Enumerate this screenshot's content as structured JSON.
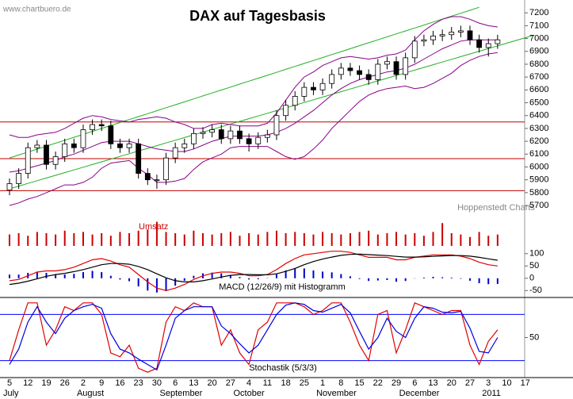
{
  "watermark": "www.chartbuero.de",
  "credit": "Hoppenstedt Charts",
  "chart_data": [
    {
      "type": "candlestick",
      "title": "DAX auf Tagesbasis",
      "open": [
        5820,
        5870,
        5950,
        6150,
        6170,
        6020,
        6080,
        6180,
        6150,
        6290,
        6330,
        6320,
        6180,
        6150,
        6180,
        5950,
        5900,
        5900,
        6070,
        6150,
        6180,
        6260,
        6270,
        6290,
        6220,
        6280,
        6220,
        6180,
        6230,
        6250,
        6400,
        6480,
        6550,
        6620,
        6600,
        6650,
        6720,
        6770,
        6750,
        6720,
        6680,
        6800,
        6820,
        6720,
        6850,
        6980,
        6990,
        7020,
        7030,
        7050,
        7060,
        6990,
        6930,
        6960,
        null,
        null,
        null,
        null
      ],
      "high": [
        5910,
        5990,
        6190,
        6210,
        6210,
        6120,
        6220,
        6220,
        6330,
        6370,
        6370,
        6360,
        6220,
        6220,
        6220,
        5990,
        5940,
        6110,
        6190,
        6220,
        6300,
        6310,
        6330,
        6330,
        6320,
        6320,
        6260,
        6270,
        6290,
        6440,
        6520,
        6590,
        6660,
        6660,
        6690,
        6760,
        6810,
        6810,
        6790,
        6760,
        6840,
        6860,
        6860,
        6890,
        7020,
        7030,
        7060,
        7070,
        7090,
        7100,
        7100,
        7030,
        7000,
        7030,
        null,
        null,
        null,
        null
      ],
      "low": [
        5780,
        5830,
        5910,
        6110,
        5980,
        5980,
        6040,
        6110,
        6110,
        6250,
        6280,
        6140,
        6110,
        6110,
        5910,
        5860,
        5830,
        5860,
        6030,
        6110,
        6140,
        6220,
        6230,
        6180,
        6180,
        6180,
        6120,
        6140,
        6190,
        6210,
        6360,
        6440,
        6510,
        6560,
        6560,
        6610,
        6680,
        6710,
        6680,
        6640,
        6640,
        6760,
        6680,
        6680,
        6810,
        6940,
        6950,
        6980,
        6990,
        7010,
        6950,
        6890,
        6860,
        6920,
        null,
        null,
        null,
        null
      ],
      "close": [
        5870,
        5950,
        6150,
        6170,
        6020,
        6080,
        6180,
        6150,
        6290,
        6330,
        6320,
        6180,
        6150,
        6180,
        5950,
        5900,
        5900,
        6070,
        6150,
        6180,
        6260,
        6270,
        6290,
        6220,
        6280,
        6220,
        6180,
        6230,
        6250,
        6400,
        6480,
        6550,
        6620,
        6600,
        6650,
        6720,
        6770,
        6750,
        6720,
        6680,
        6800,
        6820,
        6720,
        6850,
        6980,
        6990,
        7020,
        7030,
        7050,
        7060,
        6990,
        6930,
        6960,
        6990,
        null,
        null,
        null,
        null
      ],
      "candle_colors": {
        "up": "#ffffff",
        "down": "#000000",
        "outline": "#000000"
      },
      "bands": {
        "color": "#8a008a",
        "upper": [
          6250,
          6230,
          6230,
          6250,
          6260,
          6270,
          6300,
          6340,
          6380,
          6400,
          6390,
          6370,
          6360,
          6350,
          6370,
          6380,
          6390,
          6380,
          6350,
          6330,
          6300,
          6300,
          6330,
          6340,
          6330,
          6320,
          6320,
          6320,
          6340,
          6420,
          6520,
          6620,
          6700,
          6740,
          6790,
          6820,
          6850,
          6860,
          6850,
          6840,
          6850,
          6870,
          6880,
          6910,
          6990,
          7060,
          7110,
          7150,
          7170,
          7170,
          7150,
          7120,
          7100,
          7090,
          null,
          null,
          null,
          null
        ],
        "middle": [
          5960,
          5970,
          5990,
          6010,
          6030,
          6050,
          6080,
          6100,
          6130,
          6160,
          6190,
          6200,
          6200,
          6200,
          6180,
          6160,
          6140,
          6130,
          6120,
          6120,
          6140,
          6170,
          6200,
          6220,
          6240,
          6240,
          6240,
          6240,
          6250,
          6270,
          6300,
          6340,
          6390,
          6440,
          6500,
          6560,
          6610,
          6650,
          6680,
          6700,
          6720,
          6740,
          6750,
          6770,
          6800,
          6840,
          6880,
          6920,
          6950,
          6980,
          6990,
          6990,
          6990,
          6990,
          null,
          null,
          null,
          null
        ],
        "lower": [
          5700,
          5720,
          5750,
          5770,
          5800,
          5830,
          5860,
          5860,
          5880,
          5920,
          5990,
          6030,
          6040,
          6050,
          5990,
          5940,
          5880,
          5880,
          5890,
          5910,
          5980,
          6040,
          6070,
          6100,
          6150,
          6160,
          6160,
          6160,
          6160,
          6120,
          6080,
          6060,
          6080,
          6140,
          6210,
          6300,
          6370,
          6440,
          6510,
          6560,
          6590,
          6610,
          6620,
          6630,
          6610,
          6620,
          6650,
          6690,
          6730,
          6790,
          6830,
          6860,
          6880,
          6890,
          null,
          null,
          null,
          null
        ]
      },
      "trendlines": [
        {
          "color": "#22b022",
          "values": [
            6070,
            6093,
            6116,
            6139,
            6162,
            6185,
            6208,
            6231,
            6254,
            6277,
            6300,
            6323,
            6346,
            6369,
            6392,
            6415,
            6438,
            6461,
            6484,
            6507,
            6530,
            6553,
            6576,
            6599,
            6622,
            6645,
            6668,
            6691,
            6714,
            6737,
            6760,
            6783,
            6806,
            6829,
            6852,
            6875,
            6898,
            6921,
            6944,
            6967,
            6990,
            7013,
            7036,
            7059,
            7082,
            7105,
            7128,
            7151,
            7174,
            7197,
            7220,
            7243,
            null,
            null,
            null,
            null,
            null,
            null
          ]
        },
        {
          "color": "#22b022",
          "values": [
            5830,
            5851,
            5872,
            5893,
            5914,
            5935,
            5956,
            5977,
            5998,
            6019,
            6040,
            6061,
            6082,
            6103,
            6124,
            6145,
            6166,
            6187,
            6208,
            6229,
            6250,
            6271,
            6292,
            6313,
            6334,
            6355,
            6376,
            6397,
            6418,
            6439,
            6460,
            6481,
            6502,
            6523,
            6544,
            6565,
            6586,
            6607,
            6628,
            6649,
            6670,
            6691,
            6712,
            6733,
            6754,
            6775,
            6796,
            6817,
            6838,
            6859,
            6880,
            6901,
            6922,
            6943,
            6964,
            6985,
            7006,
            7027
          ]
        }
      ],
      "hlines": {
        "color": "#c00000",
        "values": [
          6350,
          6065,
          5815
        ]
      },
      "ylim": [
        5620,
        7300
      ],
      "yticks": [
        5700,
        5800,
        5900,
        6000,
        6100,
        6200,
        6300,
        6400,
        6500,
        6600,
        6700,
        6800,
        6900,
        7000,
        7100,
        7200
      ]
    },
    {
      "type": "bar",
      "title": "Umsatz",
      "color": "#cc0000",
      "values": [
        45,
        50,
        40,
        55,
        50,
        45,
        60,
        50,
        55,
        45,
        50,
        40,
        55,
        50,
        60,
        65,
        95,
        55,
        50,
        45,
        60,
        50,
        45,
        50,
        55,
        40,
        50,
        45,
        55,
        60,
        50,
        55,
        50,
        45,
        55,
        50,
        45,
        50,
        55,
        60,
        45,
        50,
        55,
        45,
        50,
        40,
        55,
        90,
        50,
        45,
        35,
        55,
        40,
        45,
        null,
        null,
        null,
        null
      ],
      "ylim": [
        0,
        100
      ]
    },
    {
      "type": "macd",
      "title": "MACD (12/26/9) mit Histogramm",
      "series": [
        {
          "color": "#e00000",
          "values": [
            -10,
            -5,
            10,
            25,
            30,
            30,
            35,
            45,
            60,
            75,
            80,
            70,
            55,
            45,
            15,
            -15,
            -40,
            -50,
            -40,
            -25,
            -5,
            10,
            20,
            25,
            25,
            20,
            10,
            10,
            15,
            35,
            60,
            80,
            95,
            100,
            105,
            110,
            110,
            105,
            95,
            85,
            85,
            85,
            75,
            75,
            85,
            90,
            95,
            95,
            95,
            90,
            80,
            65,
            55,
            50,
            null,
            null,
            null,
            null
          ]
        },
        {
          "color": "#000000",
          "values": [
            -25,
            -20,
            -12,
            -2,
            8,
            15,
            20,
            27,
            35,
            45,
            55,
            60,
            60,
            57,
            48,
            35,
            18,
            2,
            -10,
            -15,
            -15,
            -10,
            -3,
            5,
            12,
            15,
            15,
            14,
            14,
            18,
            28,
            40,
            55,
            68,
            78,
            86,
            93,
            97,
            98,
            96,
            94,
            92,
            89,
            86,
            86,
            87,
            89,
            91,
            92,
            92,
            90,
            85,
            79,
            73,
            null,
            null,
            null,
            null
          ]
        }
      ],
      "histogram": {
        "color": "#0000cc",
        "values": [
          15,
          15,
          22,
          27,
          22,
          15,
          15,
          18,
          25,
          30,
          25,
          10,
          -5,
          -12,
          -33,
          -50,
          -58,
          -52,
          -30,
          -10,
          10,
          20,
          23,
          20,
          13,
          5,
          -5,
          -4,
          1,
          17,
          32,
          40,
          40,
          32,
          27,
          24,
          17,
          8,
          -3,
          -11,
          -9,
          -7,
          -14,
          -11,
          -1,
          3,
          6,
          4,
          3,
          -2,
          -10,
          -20,
          -24,
          -23,
          null,
          null,
          null,
          null
        ]
      },
      "ylim": [
        -78,
        125
      ],
      "yticks": [
        100,
        50,
        0,
        -50
      ]
    },
    {
      "type": "stochastic",
      "title": "Stochastik (5/3/3)",
      "series": [
        {
          "color": "#e00000",
          "values": [
            20,
            60,
            95,
            95,
            40,
            60,
            90,
            85,
            95,
            95,
            80,
            30,
            25,
            40,
            10,
            5,
            10,
            70,
            90,
            85,
            95,
            90,
            90,
            40,
            60,
            30,
            15,
            60,
            70,
            95,
            95,
            95,
            90,
            80,
            85,
            95,
            95,
            70,
            40,
            20,
            80,
            85,
            30,
            60,
            95,
            90,
            85,
            80,
            85,
            85,
            40,
            15,
            45,
            60,
            null,
            null,
            null,
            null
          ]
        },
        {
          "color": "#0000e0",
          "values": [
            15,
            35,
            70,
            90,
            70,
            55,
            75,
            85,
            90,
            93,
            88,
            55,
            35,
            30,
            22,
            15,
            8,
            40,
            75,
            85,
            90,
            90,
            90,
            65,
            55,
            42,
            30,
            40,
            60,
            80,
            92,
            95,
            93,
            85,
            83,
            88,
            93,
            82,
            58,
            35,
            50,
            75,
            58,
            50,
            75,
            90,
            88,
            83,
            82,
            84,
            62,
            32,
            30,
            50,
            null,
            null,
            null,
            null
          ]
        }
      ],
      "hlines": {
        "color": "#0000ff",
        "values": [
          80,
          20
        ]
      },
      "ylim": [
        -2,
        102
      ],
      "yticks": [
        50
      ],
      "categories": [
        "5",
        null,
        "12",
        null,
        "19",
        null,
        "26",
        null,
        "2",
        null,
        "9",
        null,
        "16",
        null,
        "23",
        null,
        "30",
        null,
        "6",
        null,
        "13",
        null,
        "20",
        null,
        "27",
        null,
        "4",
        null,
        "11",
        null,
        "18",
        null,
        "25",
        null,
        "1",
        null,
        "8",
        null,
        "15",
        null,
        "22",
        null,
        "29",
        null,
        "6",
        null,
        "13",
        null,
        "20",
        null,
        "27",
        null,
        "3",
        null,
        "10",
        null,
        "17",
        null
      ],
      "months": [
        "July",
        null,
        null,
        null,
        null,
        null,
        null,
        null,
        "August",
        null,
        null,
        null,
        null,
        null,
        null,
        null,
        null,
        "September",
        null,
        null,
        null,
        null,
        null,
        null,
        null,
        "October",
        null,
        null,
        null,
        null,
        null,
        null,
        null,
        null,
        "November",
        null,
        null,
        null,
        null,
        null,
        null,
        null,
        null,
        "December",
        null,
        null,
        null,
        null,
        null,
        null,
        null,
        null,
        "2011",
        null,
        null,
        null,
        null,
        null
      ]
    }
  ]
}
